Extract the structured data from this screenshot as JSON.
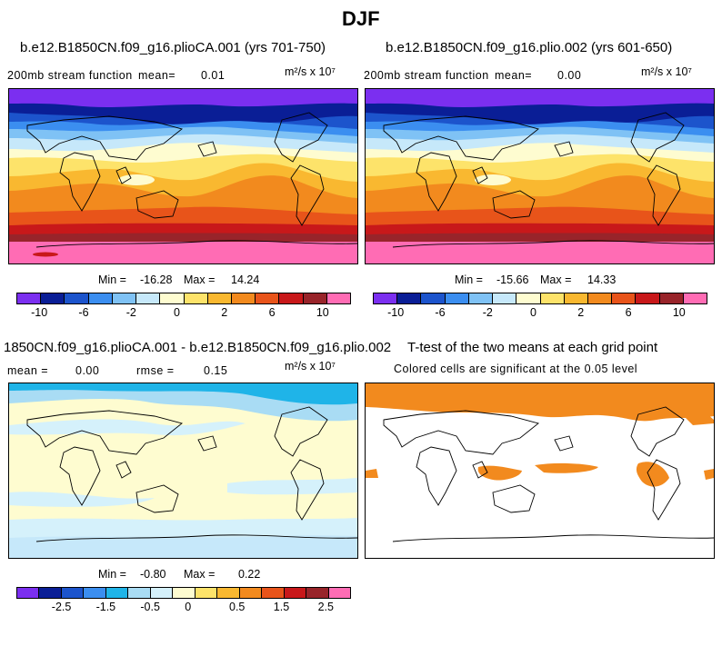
{
  "figure": {
    "title": "DJF"
  },
  "panels": [
    {
      "id": "panel-1",
      "title": "b.e12.B1850CN.f09_g16.plioCA.001 (yrs 701-750)",
      "left_label": "200mb stream function",
      "mean_label": "mean=",
      "mean_value": "0.01",
      "units": "m²/s x 10⁷",
      "min_label": "Min =",
      "min_value": "-16.28",
      "max_label": "Max =",
      "max_value": "14.24"
    },
    {
      "id": "panel-2",
      "title": "b.e12.B1850CN.f09_g16.plio.002 (yrs 601-650)",
      "left_label": "200mb stream function",
      "mean_label": "mean=",
      "mean_value": "0.00",
      "units": "m²/s x 10⁷",
      "min_label": "Min =",
      "min_value": "-15.66",
      "max_label": "Max =",
      "max_value": "14.33"
    },
    {
      "id": "panel-3",
      "title": "1850CN.f09_g16.plioCA.001 - b.e12.B1850CN.f09_g16.plio.002",
      "mean_label": "mean =",
      "mean_value": "0.00",
      "rmse_label": "rmse =",
      "rmse_value": "0.15",
      "units": "m²/s x 10⁷",
      "min_label": "Min =",
      "min_value": "-0.80",
      "max_label": "Max =",
      "max_value": "0.22"
    },
    {
      "id": "panel-4",
      "title": "T-test of the two means at each grid point",
      "subtitle": "Colored cells are significant at the 0.05 level"
    }
  ],
  "colorbars": {
    "main": {
      "colors": [
        "#7b2ff0",
        "#0a1e96",
        "#1c54cc",
        "#3b8ef0",
        "#7fc2f5",
        "#c6e8fa",
        "#fefcd0",
        "#fde36a",
        "#f9b830",
        "#f28a1e",
        "#e8541a",
        "#c8181a",
        "#98242a",
        "#ff6cb4"
      ],
      "tick_labels": [
        "-10",
        "-6",
        "-2",
        "0",
        "2",
        "6",
        "10"
      ]
    },
    "diff": {
      "colors": [
        "#7b2ff0",
        "#0a1e96",
        "#1c54cc",
        "#3b8ef0",
        "#1fb4e8",
        "#a9dcf4",
        "#d5f1fb",
        "#fefcd0",
        "#fde36a",
        "#f9b830",
        "#f28a1e",
        "#e8541a",
        "#c8181a",
        "#98242a",
        "#ff6cb4"
      ],
      "tick_labels": [
        "-2.5",
        "-1.5",
        "-0.5",
        "0",
        "0.5",
        "1.5",
        "2.5"
      ]
    }
  }
}
